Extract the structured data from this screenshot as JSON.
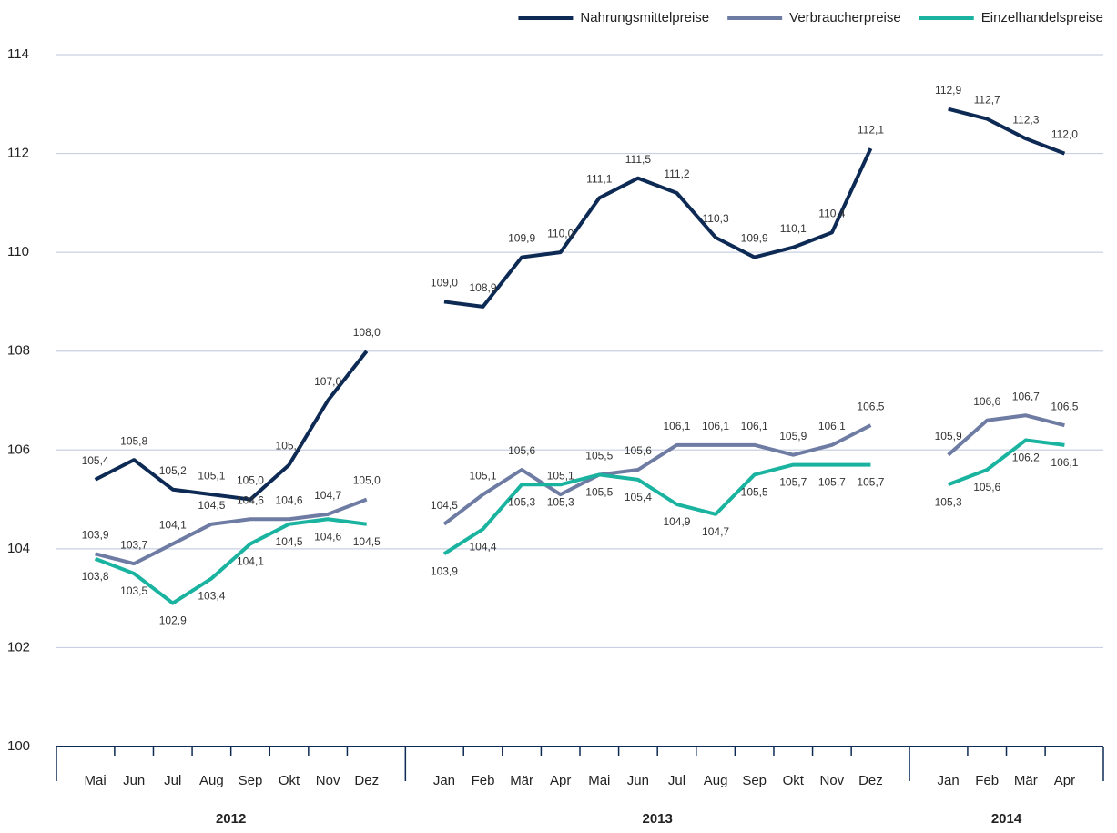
{
  "chart_data": {
    "type": "line",
    "groups": [
      {
        "name": "2012",
        "categories": [
          "Mai",
          "Jun",
          "Jul",
          "Aug",
          "Sep",
          "Okt",
          "Nov",
          "Dez"
        ]
      },
      {
        "name": "2013",
        "categories": [
          "Jan",
          "Feb",
          "Mär",
          "Apr",
          "Mai",
          "Jun",
          "Jul",
          "Aug",
          "Sep",
          "Okt",
          "Nov",
          "Dez"
        ]
      },
      {
        "name": "2014",
        "categories": [
          "Jan",
          "Feb",
          "Mär",
          "Apr"
        ]
      }
    ],
    "series": [
      {
        "name": "Nahrungsmittelpreise",
        "color": "#0d2a55",
        "values": [
          105.4,
          105.8,
          105.2,
          105.1,
          105.0,
          105.7,
          107.0,
          108.0,
          109.0,
          108.9,
          109.9,
          110.0,
          111.1,
          111.5,
          111.2,
          110.3,
          109.9,
          110.1,
          110.4,
          112.1,
          112.9,
          112.7,
          112.3,
          112.0
        ],
        "value_labels": [
          "105,4",
          "105,8",
          "105,2",
          "105,1",
          "105,0",
          "105,7",
          "107,0",
          "108,0",
          "109,0",
          "108,9",
          "109,9",
          "110,0",
          "111,1",
          "111,5",
          "111,2",
          "110,3",
          "109,9",
          "110,1",
          "110,4",
          "112,1",
          "112,9",
          "112,7",
          "112,3",
          "112,0"
        ]
      },
      {
        "name": "Verbraucherpreise",
        "color": "#6e7ba3",
        "values": [
          103.9,
          103.7,
          104.1,
          104.5,
          104.6,
          104.6,
          104.7,
          105.0,
          104.5,
          105.1,
          105.6,
          105.1,
          105.5,
          105.6,
          106.1,
          106.1,
          106.1,
          105.9,
          106.1,
          106.5,
          105.9,
          106.6,
          106.7,
          106.5
        ],
        "value_labels": [
          "103,9",
          "103,7",
          "104,1",
          "104,5",
          "104,6",
          "104,6",
          "104,7",
          "105,0",
          "104,5",
          "105,1",
          "105,6",
          "105,1",
          "105,5",
          "105,6",
          "106,1",
          "106,1",
          "106,1",
          "105,9",
          "106,1",
          "106,5",
          "105,9",
          "106,6",
          "106,7",
          "106,5"
        ]
      },
      {
        "name": "Einzelhandelspreise",
        "color": "#1ab3a0",
        "values": [
          103.8,
          103.5,
          102.9,
          103.4,
          104.1,
          104.5,
          104.6,
          104.5,
          103.9,
          104.4,
          105.3,
          105.3,
          105.5,
          105.4,
          104.9,
          104.7,
          105.5,
          105.7,
          105.7,
          105.7,
          105.3,
          105.6,
          106.2,
          106.1
        ],
        "value_labels": [
          "103,8",
          "103,5",
          "102,9",
          "103,4",
          "104,1",
          "104,5",
          "104,6",
          "104,5",
          "103,9",
          "104,4",
          "105,3",
          "105,3",
          "105,5",
          "105,4",
          "104,9",
          "104,7",
          "105,5",
          "105,7",
          "105,7",
          "105,7",
          "105,3",
          "105,6",
          "106,2",
          "106,1"
        ]
      }
    ],
    "ylim": [
      100,
      114
    ],
    "yticks": [
      100,
      102,
      104,
      106,
      108,
      110,
      112,
      114
    ],
    "grid": true,
    "legend": "top-right"
  }
}
